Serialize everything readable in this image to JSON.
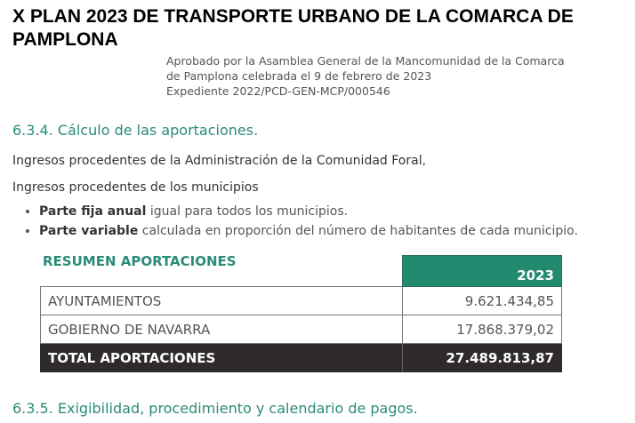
{
  "header": {
    "title": "X PLAN 2023 DE TRANSPORTE URBANO DE LA COMARCA DE PAMPLONA",
    "meta": [
      "Aprobado por la Asamblea General de la Mancomunidad de la Comarca",
      "de Pamplona celebrada el 9 de febrero de 2023",
      "Expediente 2022/PCD-GEN-MCP/000546"
    ]
  },
  "section1": {
    "heading": "6.3.4. Cálculo de las aportaciones.",
    "p1_bold": "Ingresos procedentes de la Administración de la Comunidad Foral",
    "p1_tail": ",",
    "p2": "Ingresos procedentes de los municipios",
    "bullets": [
      {
        "bold": "Parte fija anual",
        "text": " igual para todos los municipios."
      },
      {
        "bold": "Parte variable",
        "text": " calculada en proporción del número de habitantes de cada municipio."
      }
    ]
  },
  "table": {
    "title": "RESUMEN APORTACIONES",
    "year": "2023",
    "rows": [
      {
        "label": "AYUNTAMIENTOS",
        "value": "9.621.434,85"
      },
      {
        "label": "GOBIERNO DE NAVARRA",
        "value": "17.868.379,02"
      }
    ],
    "total": {
      "label": "TOTAL APORTACIONES",
      "value": "27.489.813,87"
    }
  },
  "section2": {
    "heading": "6.3.5. Exigibilidad, procedimiento y calendario de pagos."
  },
  "colors": {
    "accent": "#218a6f",
    "heading": "#2a8c7a",
    "total_bg": "#2f2b2b"
  }
}
